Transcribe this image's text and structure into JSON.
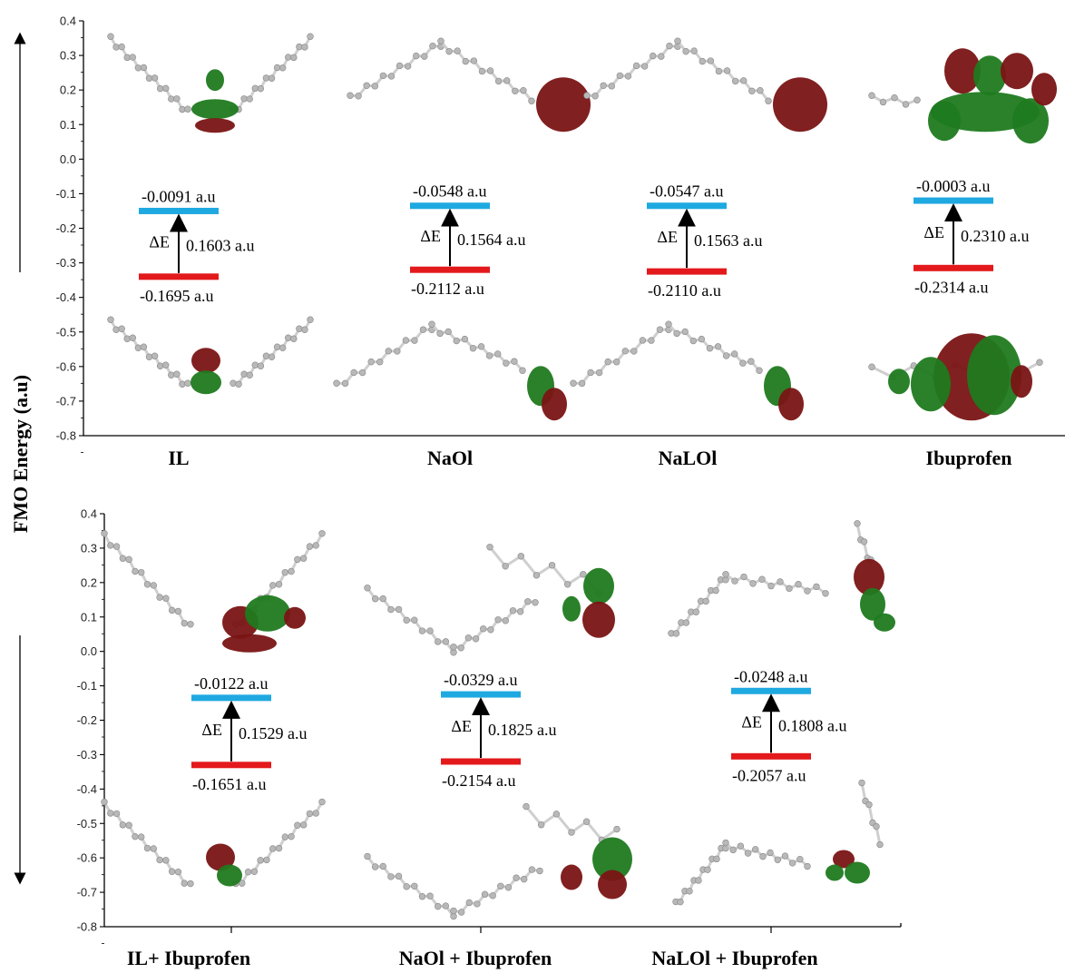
{
  "figure": {
    "ylabel": "FMO Energy (a.u)"
  },
  "chart_data": [
    {
      "type": "energy-level",
      "ylabel": "FMO Energy (a.u)",
      "ylim": [
        -0.8,
        0.4
      ],
      "yticks": [
        "0.4",
        "0.3",
        "0.2",
        "0.1",
        "0.0",
        "-0.1",
        "-0.2",
        "-0.3",
        "-0.4",
        "-0.5",
        "-0.6",
        "-0.7",
        "-0.8"
      ],
      "categories": [
        "IL",
        "NaOl",
        "NaLOl",
        "Ibuprofen"
      ],
      "delta_symbol": "ΔE",
      "items": [
        {
          "name": "IL",
          "lumo": -0.15,
          "homo": -0.34,
          "lumo_label": "-0.0091 a.u",
          "homo_label": "-0.1695 a.u",
          "gap_label": "0.1603 a.u"
        },
        {
          "name": "NaOl",
          "lumo": -0.135,
          "homo": -0.32,
          "lumo_label": "-0.0548 a.u",
          "homo_label": "-0.2112 a.u",
          "gap_label": "0.1564 a.u"
        },
        {
          "name": "NaLOl",
          "lumo": -0.135,
          "homo": -0.325,
          "lumo_label": "-0.0547 a.u",
          "homo_label": "-0.2110 a.u",
          "gap_label": "0.1563 a.u"
        },
        {
          "name": "Ibuprofen",
          "lumo": -0.12,
          "homo": -0.315,
          "lumo_label": "-0.0003 a.u",
          "homo_label": "-0.2314 a.u",
          "gap_label": "0.2310 a.u"
        }
      ],
      "colors": {
        "lumo": "#1fa9e1",
        "homo": "#e3191c",
        "lobe_a": "#7a1414",
        "lobe_b": "#1f7a1f",
        "atom": "#b8b8b8"
      }
    },
    {
      "type": "energy-level",
      "ylabel": "FMO Energy (a.u)",
      "ylim": [
        -0.8,
        0.4
      ],
      "yticks": [
        "0.4",
        "0.3",
        "0.2",
        "0.1",
        "0.0",
        "-0.1",
        "-0.2",
        "-0.3",
        "-0.4",
        "-0.5",
        "-0.6",
        "-0.7",
        "-0.8"
      ],
      "categories": [
        "IL+ Ibuprofen",
        "NaOl + Ibuprofen",
        "NaLOl + Ibuprofen"
      ],
      "delta_symbol": "ΔE",
      "items": [
        {
          "name": "IL+ Ibuprofen",
          "lumo": -0.135,
          "homo": -0.33,
          "lumo_label": "-0.0122 a.u",
          "homo_label": "-0.1651 a.u",
          "gap_label": "0.1529 a.u"
        },
        {
          "name": "NaOl + Ibuprofen",
          "lumo": -0.125,
          "homo": -0.32,
          "lumo_label": "-0.0329 a.u",
          "homo_label": "-0.2154 a.u",
          "gap_label": "0.1825 a.u"
        },
        {
          "name": "NaLOl + Ibuprofen",
          "lumo": -0.115,
          "homo": -0.305,
          "lumo_label": "-0.0248 a.u",
          "homo_label": "-0.2057 a.u",
          "gap_label": "0.1808 a.u"
        }
      ],
      "colors": {
        "lumo": "#1fa9e1",
        "homo": "#e3191c",
        "lobe_a": "#7a1414",
        "lobe_b": "#1f7a1f",
        "atom": "#b8b8b8"
      }
    }
  ]
}
